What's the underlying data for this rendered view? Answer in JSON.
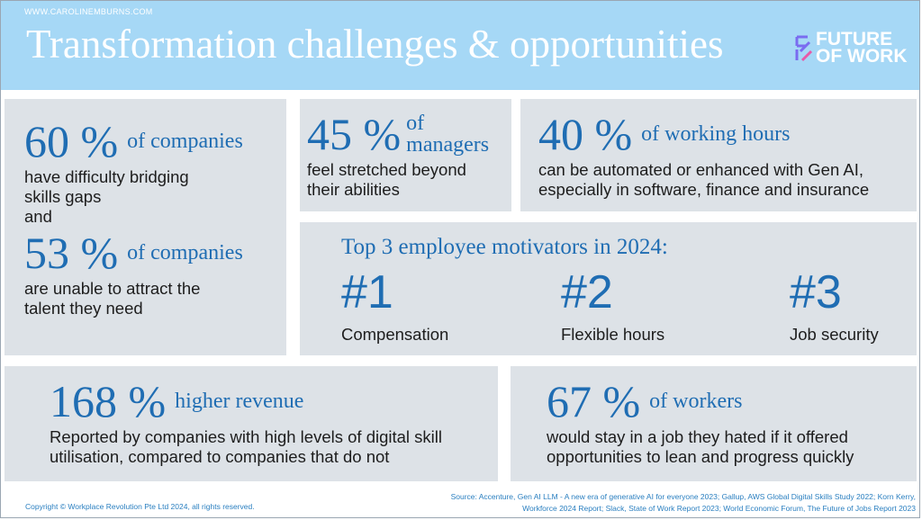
{
  "header": {
    "url": "WWW.CAROLINEMBURNS.COM",
    "title": "Transformation challenges & opportunities",
    "logo": [
      "FUTURE",
      "OF WORK"
    ]
  },
  "stats": [
    {
      "figure": "60 %",
      "label": "of companies",
      "text": "have difficulty bridging skills gaps"
    },
    {
      "figure": "53 %",
      "label": "of companies",
      "text": "are unable to attract the talent they need"
    },
    {
      "figure": "45 %",
      "label": "of managers",
      "text": "feel stretched beyond their abilities"
    },
    {
      "figure": "40 %",
      "label": "of working hours",
      "text": "can be automated or enhanced with Gen AI, especially in software, finance and insurance"
    },
    {
      "figure": "168 %",
      "label": "higher revenue",
      "text": "Reported by companies with high levels of digital skill utilisation, compared to companies that do not"
    },
    {
      "figure": "67 %",
      "label": "of workers",
      "text": "would stay in a job they hated if it offered opportunities to lean and progress quickly"
    }
  ],
  "connector": "and",
  "motivators": {
    "title": "Top 3 employee motivators in 2024:",
    "items": [
      {
        "rank": "#1",
        "label": "Compensation"
      },
      {
        "rank": "#2",
        "label": "Flexible hours"
      },
      {
        "rank": "#3",
        "label": "Job security"
      }
    ]
  },
  "footer": {
    "copyright": "Copyright © Workplace Revolution Pte Ltd 2024, all rights reserved.",
    "sources": "Source:  Accenture, Gen AI LLM - A new era of generative AI for everyone 2023;  Gallup, AWS Global Digital Skills Study 2022;  Korn Kerry, Workforce 2024 Report; Slack, State of Work Report 2023;  World Economic Forum, The Future of Jobs Report 2023"
  }
}
